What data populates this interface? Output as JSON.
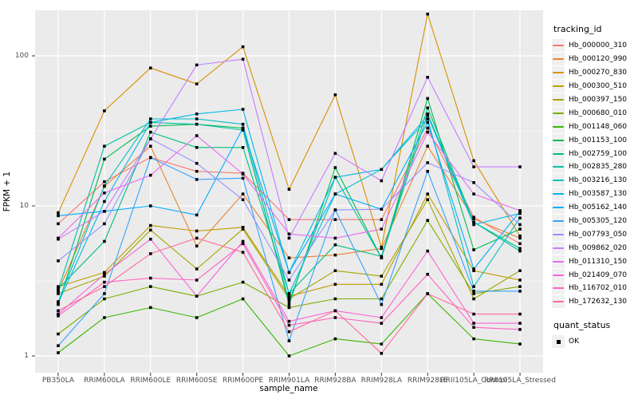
{
  "chart_data": {
    "type": "line",
    "title": "",
    "xlabel": "sample_name",
    "ylabel": "FPKM + 1",
    "y_scale": "log10",
    "ylim": [
      0.78,
      200
    ],
    "y_ticks": [
      1,
      10,
      100
    ],
    "y_tick_labels": [
      "1",
      "10",
      "100"
    ],
    "y_minor_ticks": [
      3.162,
      31.62
    ],
    "grid": true,
    "legend_position": "right",
    "categories": [
      "PB350LA",
      "RRIM600LA",
      "RRIM600LE",
      "RRIM600SE",
      "RRIM600PE",
      "RRIM901LA",
      "RRIM928BA",
      "RRIM928LA",
      "RRIM928LE",
      "RRII105LA_Control",
      "RRII105LA_Stressed"
    ],
    "series": [
      {
        "name": "Hb_000000_310",
        "color": "#F8766D",
        "values": [
          7.6,
          14.5,
          21,
          17,
          16.5,
          8.1,
          8.1,
          8.1,
          33,
          8.4,
          5.6
        ]
      },
      {
        "name": "Hb_000120_990",
        "color": "#EA8331",
        "values": [
          2.7,
          13.5,
          25,
          5.4,
          12,
          4.5,
          4.7,
          5.2,
          25,
          8.2,
          6.1
        ]
      },
      {
        "name": "Hb_000270_830",
        "color": "#D89000",
        "values": [
          9,
          43,
          83,
          65,
          115,
          12.9,
          55,
          5.3,
          190,
          20,
          6.3
        ]
      },
      {
        "name": "Hb_000300_510",
        "color": "#C09B00",
        "values": [
          2.9,
          3.6,
          7.4,
          6.8,
          7.2,
          2.5,
          3.0,
          3.0,
          12,
          3.7,
          3.2
        ]
      },
      {
        "name": "Hb_000397_150",
        "color": "#A3A500",
        "values": [
          2.6,
          3.4,
          6.9,
          3.8,
          7.0,
          2.4,
          3.7,
          3.4,
          11,
          2.4,
          3.7
        ]
      },
      {
        "name": "Hb_000680_010",
        "color": "#7CAE00",
        "values": [
          1.4,
          2.4,
          2.9,
          2.5,
          3.1,
          2.1,
          2.4,
          2.4,
          8.0,
          2.6,
          2.9
        ]
      },
      {
        "name": "Hb_001148_060",
        "color": "#39B600",
        "values": [
          1.05,
          1.8,
          2.1,
          1.8,
          2.4,
          1.0,
          1.3,
          1.2,
          2.6,
          1.3,
          1.2
        ]
      },
      {
        "name": "Hb_001153_100",
        "color": "#00BB4E",
        "values": [
          2.2,
          20.5,
          34,
          35,
          33,
          2.2,
          18,
          4.5,
          52,
          5.1,
          7.0
        ]
      },
      {
        "name": "Hb_002759_100",
        "color": "#00BF7D",
        "values": [
          2.8,
          5.8,
          31,
          24.5,
          24.5,
          2.6,
          5.5,
          4.6,
          45,
          7.8,
          5.2
        ]
      },
      {
        "name": "Hb_002835_280",
        "color": "#00C1A3",
        "values": [
          2.75,
          25,
          36,
          35,
          32,
          2.3,
          15.5,
          4.5,
          41,
          7.8,
          5.0
        ]
      },
      {
        "name": "Hb_003216_130",
        "color": "#00BFC4",
        "values": [
          2.3,
          13.6,
          38,
          38,
          35,
          2.6,
          12,
          17.5,
          38,
          2.9,
          8.3
        ]
      },
      {
        "name": "Hb_003587_130",
        "color": "#00B8E7",
        "values": [
          2.25,
          10.7,
          36,
          41,
          44,
          3.6,
          15.5,
          17.5,
          40,
          7.5,
          8.9
        ]
      },
      {
        "name": "Hb_005162_140",
        "color": "#00ACFC",
        "values": [
          8.6,
          9.2,
          10,
          8.7,
          33,
          3.6,
          12,
          9.5,
          36,
          3.8,
          9.2
        ]
      },
      {
        "name": "Hb_005305_120",
        "color": "#35A2FF",
        "values": [
          1.17,
          2.6,
          21,
          15,
          15.3,
          1.26,
          9.4,
          2.2,
          17,
          2.7,
          2.7
        ]
      },
      {
        "name": "Hb_007793_050",
        "color": "#9590FF",
        "values": [
          4.3,
          7.6,
          28,
          19.2,
          11,
          3.2,
          9.4,
          9.5,
          19.4,
          14.3,
          7.5
        ]
      },
      {
        "name": "Hb_009862_020",
        "color": "#C77CFF",
        "values": [
          6.0,
          9.2,
          28,
          87,
          95,
          6.1,
          22.4,
          14.7,
          72,
          18.2,
          18.2
        ]
      },
      {
        "name": "Hb_011310_150",
        "color": "#E76BF3",
        "values": [
          6.1,
          12.2,
          16,
          29.4,
          16.3,
          6.5,
          6.1,
          7.0,
          31,
          12,
          9.3
        ]
      },
      {
        "name": "Hb_021409_070",
        "color": "#FA62DB",
        "values": [
          1.9,
          3.5,
          6.0,
          2.5,
          5.8,
          1.7,
          2.0,
          1.8,
          5.0,
          1.65,
          1.65
        ]
      },
      {
        "name": "Hb_116702_010",
        "color": "#FF61C3",
        "values": [
          1.85,
          3.1,
          3.3,
          3.2,
          5.6,
          1.6,
          1.8,
          1.65,
          3.5,
          1.55,
          1.5
        ]
      },
      {
        "name": "Hb_172632_130",
        "color": "#FF6A98",
        "values": [
          2.0,
          2.9,
          4.8,
          6.1,
          4.9,
          1.45,
          2.0,
          1.04,
          2.6,
          1.9,
          1.9
        ]
      }
    ],
    "legend": {
      "title": "tracking_id"
    },
    "quant_status": {
      "title": "quant_status",
      "items": [
        {
          "label": "OK",
          "marker": "black-square"
        }
      ]
    },
    "colors": {
      "panel_bg": "#EBEBEB",
      "grid": "#FFFFFF",
      "point": "#000000",
      "tick_text": "#4D4D4D",
      "tick_mark": "#333333",
      "legend_key_bg": "#F0F0F0"
    }
  }
}
